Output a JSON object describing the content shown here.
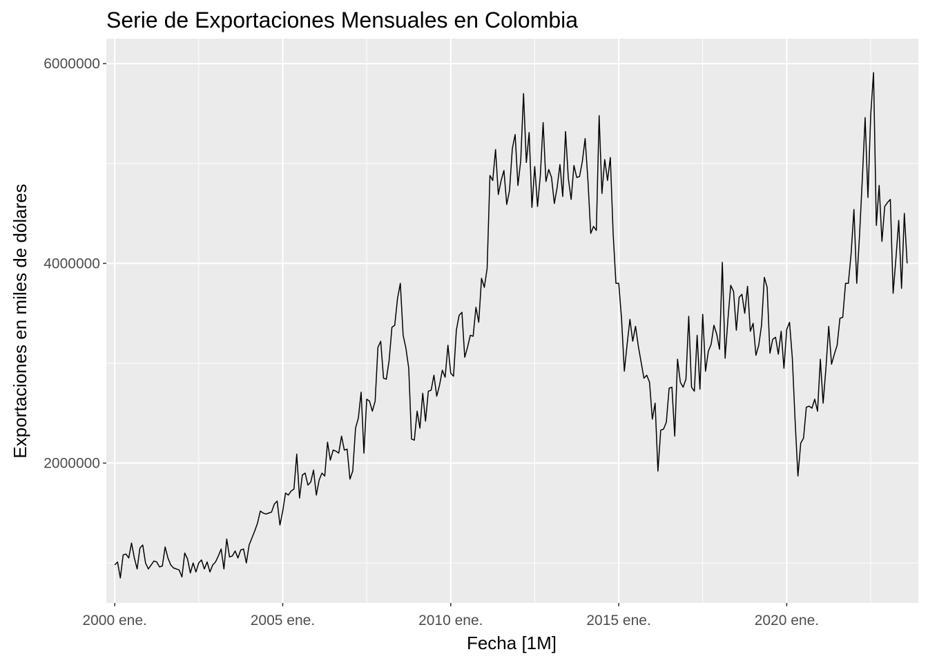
{
  "chart_data": {
    "type": "line",
    "title": "Serie de Exportaciones Mensuales en Colombia",
    "xlabel": "Fecha [1M]",
    "ylabel": "Exportaciones en miles de dólares",
    "x_ticks": [
      "2000 ene.",
      "2005 ene.",
      "2010 ene.",
      "2015 ene.",
      "2020 ene."
    ],
    "x_tick_years": [
      2000,
      2005,
      2010,
      2015,
      2020
    ],
    "y_ticks": [
      2000000,
      4000000,
      6000000
    ],
    "y_tick_labels": [
      "2000000",
      "4000000",
      "6000000"
    ],
    "xlim": [
      "1999-10",
      "2023-12"
    ],
    "ylim": [
      600000,
      6250000
    ],
    "grid": true,
    "legend": "none",
    "panel_color": "#ebebeb",
    "line_color": "#000000",
    "series": [
      {
        "start": "2000-01",
        "frequency": "monthly",
        "values": [
          980000,
          1010000,
          850000,
          1080000,
          1090000,
          1050000,
          1200000,
          1050000,
          940000,
          1150000,
          1180000,
          1000000,
          940000,
          980000,
          1020000,
          1010000,
          960000,
          970000,
          1160000,
          1050000,
          980000,
          950000,
          940000,
          930000,
          860000,
          1100000,
          1040000,
          900000,
          1000000,
          910000,
          1000000,
          1030000,
          940000,
          1010000,
          910000,
          980000,
          1010000,
          1070000,
          1140000,
          940000,
          1240000,
          1060000,
          1070000,
          1120000,
          1050000,
          1130000,
          1140000,
          1000000,
          1180000,
          1250000,
          1320000,
          1400000,
          1520000,
          1500000,
          1490000,
          1500000,
          1510000,
          1590000,
          1620000,
          1380000,
          1520000,
          1700000,
          1680000,
          1720000,
          1740000,
          2090000,
          1650000,
          1880000,
          1900000,
          1780000,
          1810000,
          1930000,
          1680000,
          1830000,
          1900000,
          1870000,
          2210000,
          2030000,
          2130000,
          2120000,
          2100000,
          2270000,
          2130000,
          2140000,
          1840000,
          1920000,
          2350000,
          2450000,
          2710000,
          2100000,
          2640000,
          2620000,
          2520000,
          2620000,
          3160000,
          3220000,
          2850000,
          2840000,
          3030000,
          3360000,
          3380000,
          3650000,
          3800000,
          3280000,
          3150000,
          2950000,
          2240000,
          2230000,
          2520000,
          2350000,
          2700000,
          2420000,
          2720000,
          2730000,
          2880000,
          2670000,
          2780000,
          2930000,
          2860000,
          3180000,
          2900000,
          2870000,
          3330000,
          3480000,
          3510000,
          3060000,
          3160000,
          3280000,
          3270000,
          3560000,
          3410000,
          3850000,
          3760000,
          3950000,
          4880000,
          4830000,
          5140000,
          4690000,
          4830000,
          4930000,
          4590000,
          4730000,
          5150000,
          5290000,
          4780000,
          5030000,
          5700000,
          5010000,
          5310000,
          4560000,
          4970000,
          4570000,
          4880000,
          5410000,
          4820000,
          4940000,
          4860000,
          4600000,
          4760000,
          4990000,
          4670000,
          5320000,
          4850000,
          4640000,
          4980000,
          4860000,
          4870000,
          5020000,
          5250000,
          4830000,
          4300000,
          4370000,
          4330000,
          5480000,
          4700000,
          5040000,
          4830000,
          5060000,
          4300000,
          3800000,
          3800000,
          3450000,
          2920000,
          3190000,
          3440000,
          3220000,
          3370000,
          3170000,
          3010000,
          2850000,
          2880000,
          2810000,
          2440000,
          2600000,
          1920000,
          2330000,
          2340000,
          2410000,
          2750000,
          2760000,
          2270000,
          3040000,
          2810000,
          2760000,
          2840000,
          3470000,
          2760000,
          2720000,
          3280000,
          2740000,
          3490000,
          2920000,
          3120000,
          3190000,
          3380000,
          3290000,
          3140000,
          4010000,
          3050000,
          3440000,
          3780000,
          3720000,
          3330000,
          3660000,
          3690000,
          3500000,
          3770000,
          3320000,
          3400000,
          3080000,
          3180000,
          3380000,
          3860000,
          3760000,
          3100000,
          3240000,
          3260000,
          3090000,
          3320000,
          2950000,
          3340000,
          3410000,
          3050000,
          2420000,
          1870000,
          2200000,
          2250000,
          2560000,
          2570000,
          2550000,
          2640000,
          2520000,
          3040000,
          2600000,
          2950000,
          3370000,
          2990000,
          3090000,
          3180000,
          3450000,
          3460000,
          3800000,
          3800000,
          4100000,
          4540000,
          3800000,
          4280000,
          4850000,
          5460000,
          4660000,
          5490000,
          5910000,
          4380000,
          4780000,
          4220000,
          4570000,
          4610000,
          4640000,
          3700000,
          4050000,
          4430000,
          3750000,
          4500000,
          4000000
        ]
      }
    ]
  }
}
